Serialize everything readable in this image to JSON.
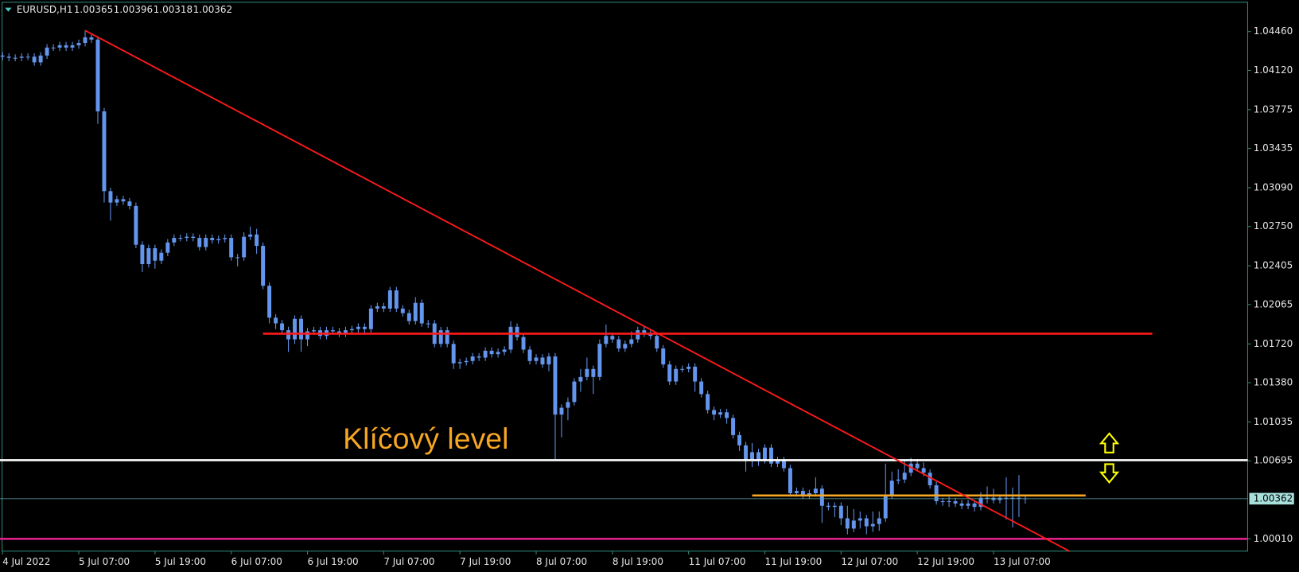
{
  "chart_data": {
    "type": "candlestick",
    "title": "EURUSD,H1",
    "candle_color": "#6495ed",
    "open": [
      1.0425,
      1.0424,
      1.0423,
      1.0423,
      1.0424,
      1.0424,
      1.0419,
      1.0425,
      1.0432,
      1.0432,
      1.0434,
      1.0432,
      1.0434,
      1.0436,
      1.0441,
      1.0439,
      1.0376,
      1.0306,
      1.0296,
      1.0299,
      1.0297,
      1.0293,
      1.0259,
      1.0242,
      1.0256,
      1.0245,
      1.0252,
      1.0261,
      1.0265,
      1.0265,
      1.0266,
      1.0265,
      1.0257,
      1.0265,
      1.0263,
      1.0264,
      1.0265,
      1.0248,
      1.0248,
      1.0266,
      1.0268,
      1.0258,
      1.0223,
      1.0195,
      1.019,
      1.0184,
      1.0176,
      1.0194,
      1.0176,
      1.0183,
      1.0184,
      1.0179,
      1.0184,
      1.0183,
      1.0181,
      1.0184,
      1.0185,
      1.0187,
      1.0185,
      1.0203,
      1.0205,
      1.0203,
      1.0219,
      1.0203,
      1.0199,
      1.0192,
      1.0208,
      1.019,
      1.019,
      1.0172,
      1.0184,
      1.0172,
      1.0155,
      1.0156,
      1.0157,
      1.0161,
      1.016,
      1.0166,
      1.0163,
      1.0165,
      1.0167,
      1.0187,
      1.0178,
      1.0167,
      1.0157,
      1.016,
      1.0154,
      1.0161,
      1.011,
      1.0116,
      1.0121,
      1.0139,
      1.0143,
      1.015,
      1.0143,
      1.0172,
      1.0179,
      1.0176,
      1.0168,
      1.0172,
      1.0176,
      1.0184,
      1.0181,
      1.0179,
      1.0168,
      1.0154,
      1.0139,
      1.015,
      1.015,
      1.0152,
      1.0139,
      1.0128,
      1.0114,
      1.011,
      1.0112,
      1.0107,
      1.0092,
      1.0083,
      1.007,
      1.0077,
      1.007,
      1.0081,
      1.0067,
      1.007,
      1.0063,
      1.0041,
      1.0043,
      1.0039,
      1.0041,
      1.0045,
      1.003,
      1.0029,
      1.003,
      1.0019,
      1.001,
      1.0017,
      1.0019,
      1.0012,
      1.0014,
      1.0019,
      1.0039,
      1.0052,
      1.0053,
      1.0059,
      1.0067,
      1.0063,
      1.0059,
      1.0048,
      1.0034,
      1.0034,
      1.0034,
      1.0032,
      1.003,
      1.0032,
      1.0029,
      1.0037,
      1.0037,
      1.0035,
      1.0037,
      1.0036,
      1.0037,
      1.00365
    ],
    "high": [
      1.0428,
      1.0427,
      1.0426,
      1.0427,
      1.0427,
      1.0427,
      1.0428,
      1.0435,
      1.0435,
      1.0437,
      1.0437,
      1.0437,
      1.0439,
      1.0447,
      1.0444,
      1.0442,
      1.0379,
      1.0309,
      1.0302,
      1.0302,
      1.03,
      1.0296,
      1.0262,
      1.0259,
      1.0259,
      1.0255,
      1.0264,
      1.0268,
      1.0268,
      1.0269,
      1.0269,
      1.0268,
      1.0268,
      1.0268,
      1.0267,
      1.0268,
      1.0268,
      1.0251,
      1.027,
      1.0275,
      1.0273,
      1.0261,
      1.0226,
      1.0198,
      1.0193,
      1.0187,
      1.0197,
      1.0197,
      1.0186,
      1.0187,
      1.0187,
      1.0187,
      1.0187,
      1.0186,
      1.0187,
      1.0188,
      1.019,
      1.019,
      1.0206,
      1.0208,
      1.0208,
      1.0222,
      1.0222,
      1.0206,
      1.0202,
      1.0213,
      1.0211,
      1.0193,
      1.0193,
      1.0187,
      1.0187,
      1.0175,
      1.0159,
      1.016,
      1.0164,
      1.0164,
      1.0169,
      1.0169,
      1.0168,
      1.017,
      1.0192,
      1.019,
      1.0181,
      1.017,
      1.0163,
      1.0163,
      1.0164,
      1.0164,
      1.0119,
      1.0125,
      1.0142,
      1.015,
      1.016,
      1.0153,
      1.0176,
      1.0189,
      1.0182,
      1.0179,
      1.0175,
      1.0183,
      1.0187,
      1.0187,
      1.0184,
      1.0182,
      1.0171,
      1.0157,
      1.0153,
      1.0153,
      1.0155,
      1.0155,
      1.0142,
      1.0131,
      1.0117,
      1.0115,
      1.0115,
      1.011,
      1.0095,
      1.0086,
      1.0085,
      1.008,
      1.0084,
      1.0084,
      1.0073,
      1.0073,
      1.0066,
      1.0046,
      1.0046,
      1.0044,
      1.0055,
      1.0048,
      1.0033,
      1.0033,
      1.0033,
      1.003,
      1.0027,
      1.0025,
      1.0022,
      1.0025,
      1.0025,
      1.0067,
      1.006,
      1.0062,
      1.007,
      1.0072,
      1.0071,
      1.0068,
      1.0062,
      1.0051,
      1.0037,
      1.0038,
      1.0037,
      1.0035,
      1.0035,
      1.0035,
      1.0042,
      1.0047,
      1.0045,
      1.004,
      1.0055,
      1.0046,
      1.0057,
      1.00396
    ],
    "low": [
      1.0421,
      1.042,
      1.042,
      1.042,
      1.0421,
      1.0416,
      1.0416,
      1.0422,
      1.0429,
      1.0429,
      1.0429,
      1.0429,
      1.0431,
      1.0433,
      1.0436,
      1.0365,
      1.0296,
      1.028,
      1.0293,
      1.0294,
      1.029,
      1.0256,
      1.0235,
      1.0239,
      1.0238,
      1.0242,
      1.0249,
      1.0258,
      1.0262,
      1.0262,
      1.0262,
      1.0254,
      1.0254,
      1.026,
      1.026,
      1.0261,
      1.0245,
      1.024,
      1.0245,
      1.0263,
      1.0251,
      1.022,
      1.019,
      1.0185,
      1.018,
      1.0165,
      1.0172,
      1.0165,
      1.017,
      1.018,
      1.0176,
      1.0176,
      1.018,
      1.0178,
      1.0178,
      1.0181,
      1.0182,
      1.018,
      1.0182,
      1.02,
      1.02,
      1.02,
      1.02,
      1.0196,
      1.0189,
      1.0189,
      1.0187,
      1.0186,
      1.0169,
      1.0169,
      1.0169,
      1.015,
      1.015,
      1.0153,
      1.0154,
      1.0157,
      1.0157,
      1.016,
      1.016,
      1.0162,
      1.0164,
      1.0175,
      1.0164,
      1.0154,
      1.0154,
      1.0151,
      1.0148,
      1.0071,
      1.009,
      1.0105,
      1.0118,
      1.013,
      1.014,
      1.0128,
      1.014,
      1.0169,
      1.0173,
      1.0165,
      1.0165,
      1.0169,
      1.0173,
      1.0178,
      1.0176,
      1.0165,
      1.0151,
      1.0136,
      1.0136,
      1.0147,
      1.0147,
      1.013,
      1.0125,
      1.0111,
      1.0105,
      1.0107,
      1.0102,
      1.0089,
      1.0078,
      1.006,
      1.0064,
      1.0065,
      1.0067,
      1.0064,
      1.0064,
      1.006,
      1.0038,
      1.0038,
      1.0036,
      1.0036,
      1.0038,
      1.0015,
      1.0026,
      1.002,
      1.0013,
      1.0005,
      1.0007,
      1.001,
      1.0005,
      1.0007,
      1.0008,
      1.0016,
      1.0036,
      1.0049,
      1.005,
      1.0056,
      1.006,
      1.0056,
      1.0045,
      1.0031,
      1.003,
      1.0029,
      1.0029,
      1.0027,
      1.0027,
      1.0025,
      1.0026,
      1.0032,
      1.0032,
      1.0032,
      1.0018,
      1.0011,
      1.002,
      1.00318
    ],
    "close": [
      1.0424,
      1.0423,
      1.0423,
      1.0424,
      1.0424,
      1.0419,
      1.0425,
      1.0432,
      1.0432,
      1.0434,
      1.0432,
      1.0434,
      1.0436,
      1.0441,
      1.0439,
      1.0376,
      1.0306,
      1.0296,
      1.0299,
      1.0297,
      1.0293,
      1.0259,
      1.0242,
      1.0256,
      1.0245,
      1.0252,
      1.0261,
      1.0265,
      1.0265,
      1.0266,
      1.0265,
      1.0257,
      1.0265,
      1.0263,
      1.0264,
      1.0265,
      1.0248,
      1.0248,
      1.0266,
      1.0268,
      1.0258,
      1.0223,
      1.0195,
      1.019,
      1.0184,
      1.0176,
      1.0194,
      1.0176,
      1.0183,
      1.0184,
      1.0179,
      1.0184,
      1.0183,
      1.0181,
      1.0184,
      1.0185,
      1.0187,
      1.0185,
      1.0203,
      1.0205,
      1.0203,
      1.0219,
      1.0203,
      1.0199,
      1.0192,
      1.0208,
      1.019,
      1.019,
      1.0172,
      1.0184,
      1.0172,
      1.0155,
      1.0156,
      1.0157,
      1.0161,
      1.016,
      1.0166,
      1.0163,
      1.0165,
      1.0167,
      1.0187,
      1.0178,
      1.0167,
      1.0157,
      1.016,
      1.0154,
      1.0161,
      1.011,
      1.0116,
      1.0121,
      1.0139,
      1.0143,
      1.015,
      1.0143,
      1.0172,
      1.0179,
      1.0176,
      1.0168,
      1.0172,
      1.0176,
      1.0184,
      1.0181,
      1.0179,
      1.0168,
      1.0154,
      1.0139,
      1.015,
      1.015,
      1.0152,
      1.0139,
      1.0128,
      1.0114,
      1.011,
      1.0112,
      1.0107,
      1.0092,
      1.0083,
      1.007,
      1.0077,
      1.007,
      1.0081,
      1.0067,
      1.007,
      1.0063,
      1.0041,
      1.0043,
      1.0039,
      1.0041,
      1.0045,
      1.003,
      1.0029,
      1.003,
      1.0019,
      1.001,
      1.0017,
      1.0019,
      1.0012,
      1.0014,
      1.0019,
      1.0039,
      1.0052,
      1.0053,
      1.0059,
      1.0067,
      1.0063,
      1.0059,
      1.0048,
      1.0034,
      1.0034,
      1.0034,
      1.0032,
      1.003,
      1.0032,
      1.0029,
      1.0037,
      1.0037,
      1.0035,
      1.0037,
      1.0036,
      1.0037,
      1.0036,
      1.00362
    ],
    "xlim": [
      -0.4,
      196
    ],
    "xticks": [
      {
        "value": 0,
        "label": "4 Jul 2022"
      },
      {
        "value": 12,
        "label": "5 Jul 07:00"
      },
      {
        "value": 24,
        "label": "5 Jul 19:00"
      },
      {
        "value": 36,
        "label": "6 Jul 07:00"
      },
      {
        "value": 48,
        "label": "6 Jul 19:00"
      },
      {
        "value": 60,
        "label": "7 Jul 07:00"
      },
      {
        "value": 72,
        "label": "7 Jul 19:00"
      },
      {
        "value": 84,
        "label": "8 Jul 07:00"
      },
      {
        "value": 96,
        "label": "8 Jul 19:00"
      },
      {
        "value": 108,
        "label": "11 Jul 07:00"
      },
      {
        "value": 120,
        "label": "11 Jul 19:00"
      },
      {
        "value": 132,
        "label": "12 Jul 07:00"
      },
      {
        "value": 144,
        "label": "12 Jul 19:00"
      },
      {
        "value": 156,
        "label": "13 Jul 07:00"
      }
    ],
    "ylim": [
      0.99902,
      1.04714
    ],
    "yticks": [
      {
        "value": 1.0446,
        "label": "1.04460"
      },
      {
        "value": 1.0412,
        "label": "1.04120"
      },
      1.03775,
      1.03435,
      {
        "value": 1.0309,
        "label": "1.03090"
      },
      {
        "value": 1.0275,
        "label": "1.02750"
      },
      1.02405,
      1.02065,
      {
        "value": 1.0172,
        "label": "1.01720"
      },
      {
        "value": 1.0138,
        "label": "1.01380"
      },
      1.01035,
      1.00695,
      {
        "value": 1.0001,
        "label": "1.00010"
      }
    ],
    "trendline": {
      "color": "#ff1a1a",
      "from": [
        13,
        1.0447
      ],
      "to": [
        168,
        0.999
      ]
    },
    "levels": [
      {
        "price": 1.0181,
        "color": "#ff1a1a",
        "from": 41,
        "to": 181
      },
      {
        "price": 1.007,
        "color": "#ffffff",
        "from": -0.4,
        "to": 196
      },
      {
        "price": 1.0039,
        "color": "#f5a623",
        "from": 118,
        "to": 170.5
      },
      {
        "price": 1.0001,
        "color": "#e0218a",
        "from": -0.4,
        "to": 196
      }
    ],
    "annotation": "Klíčový level"
  }
}
